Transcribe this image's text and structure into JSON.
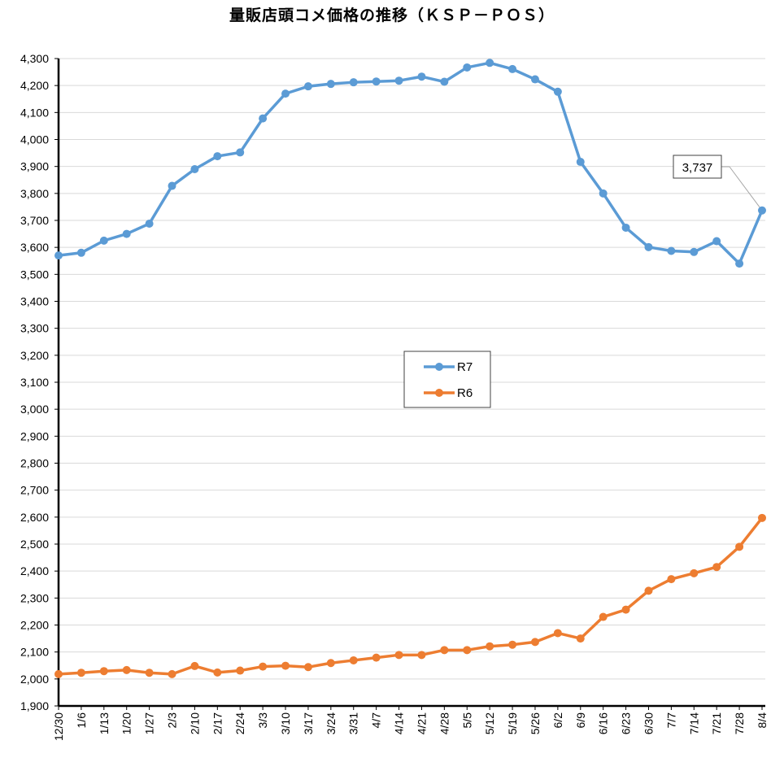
{
  "chart_data": {
    "type": "line",
    "title": "量販店頭コメ価格の推移（ＫＳＰ－ＰＯＳ）",
    "xlabel": "",
    "ylabel": "",
    "ylim": [
      1900,
      4300
    ],
    "ytick_step": 100,
    "grid": true,
    "legend_position": "center",
    "categories": [
      "12/30",
      "1/6",
      "1/13",
      "1/20",
      "1/27",
      "2/3",
      "2/10",
      "2/17",
      "2/24",
      "3/3",
      "3/10",
      "3/17",
      "3/24",
      "3/31",
      "4/7",
      "4/14",
      "4/21",
      "4/28",
      "5/5",
      "5/12",
      "5/19",
      "5/26",
      "6/2",
      "6/9",
      "6/16",
      "6/23",
      "6/30",
      "7/7",
      "7/14",
      "7/21",
      "7/28",
      "8/4"
    ],
    "series": [
      {
        "name": "R7",
        "color": "#5B9BD5",
        "values": [
          3570,
          3580,
          3625,
          3650,
          3688,
          3828,
          3890,
          3938,
          3952,
          4078,
          4170,
          4197,
          4206,
          4212,
          4215,
          4218,
          4233,
          4214,
          4267,
          4284,
          4261,
          4223,
          4177,
          3917,
          3800,
          3673,
          3601,
          3587,
          3583,
          3623,
          3540,
          3737
        ]
      },
      {
        "name": "R6",
        "color": "#ED7D31",
        "values": [
          2018,
          2023,
          2029,
          2033,
          2023,
          2018,
          2048,
          2024,
          2031,
          2046,
          2049,
          2044,
          2059,
          2069,
          2079,
          2089,
          2089,
          2107,
          2107,
          2121,
          2127,
          2137,
          2170,
          2150,
          2230,
          2257,
          2327,
          2370,
          2392,
          2415,
          2490,
          2597
        ]
      }
    ],
    "annotations": [
      {
        "series": "R7",
        "category": "8/4",
        "text": "3,737"
      }
    ]
  }
}
